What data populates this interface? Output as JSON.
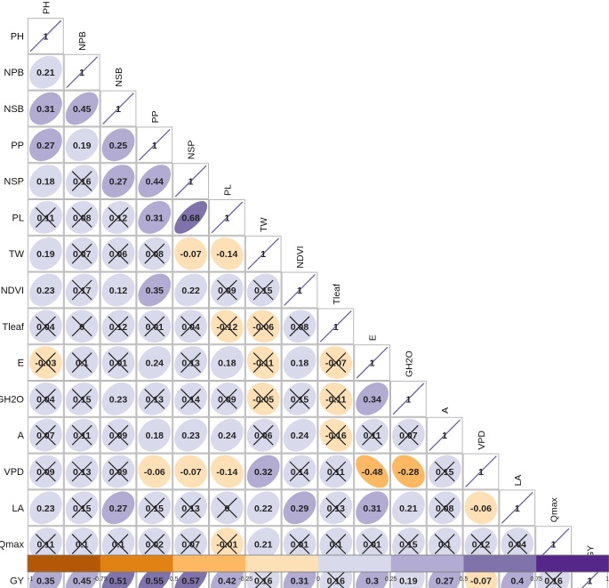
{
  "chart_data": {
    "type": "heatmap",
    "subtype": "correlation-matrix-lower-triangle",
    "variables": [
      "PH",
      "NPB",
      "NSB",
      "PP",
      "NSP",
      "PL",
      "TW",
      "NDVI",
      "Tleaf",
      "E",
      "GH2O",
      "A",
      "VPD",
      "LA",
      "Qmax",
      "GY"
    ],
    "matrix": [
      [
        1
      ],
      [
        0.21,
        1
      ],
      [
        0.31,
        0.45,
        1
      ],
      [
        0.27,
        0.19,
        0.25,
        1
      ],
      [
        0.18,
        0.16,
        0.27,
        0.44,
        1
      ],
      [
        0.11,
        0.08,
        0.12,
        0.31,
        0.68,
        1
      ],
      [
        0.19,
        0.07,
        0.06,
        0.08,
        -0.07,
        -0.14,
        1
      ],
      [
        0.23,
        0.17,
        0.12,
        0.35,
        0.22,
        0.09,
        0.15,
        1
      ],
      [
        0.04,
        0,
        0.12,
        0.01,
        0.04,
        -0.12,
        -0.06,
        0.08,
        1
      ],
      [
        -0.03,
        0.1,
        0.01,
        0.24,
        0.13,
        0.18,
        -0.11,
        0.18,
        -0.07,
        1
      ],
      [
        0.04,
        0.15,
        0.23,
        0.13,
        0.14,
        0.09,
        -0.05,
        0.15,
        -0.11,
        0.34,
        1
      ],
      [
        0.07,
        0.11,
        0.09,
        0.18,
        0.23,
        0.24,
        0.06,
        0.24,
        -0.16,
        0.11,
        0.07,
        1
      ],
      [
        0.09,
        0.13,
        0.09,
        -0.06,
        -0.07,
        -0.14,
        0.32,
        0.14,
        0.11,
        -0.48,
        -0.28,
        0.15,
        1
      ],
      [
        0.23,
        0.15,
        0.27,
        0.15,
        0.13,
        0,
        0.22,
        0.29,
        0.13,
        0.31,
        0.21,
        0.08,
        -0.06,
        1
      ],
      [
        0.11,
        0.1,
        0.1,
        0.02,
        0.07,
        -0.01,
        0.21,
        0.01,
        0.1,
        0.01,
        0.15,
        0.1,
        0.12,
        0.04,
        1
      ],
      [
        0.35,
        0.45,
        0.51,
        0.55,
        0.57,
        0.42,
        0.16,
        0.31,
        0.16,
        0.3,
        0.19,
        0.27,
        -0.07,
        0.4,
        0.16,
        1
      ]
    ],
    "labels": [
      [
        "1"
      ],
      [
        "0.21",
        "1"
      ],
      [
        "0.31",
        "0.45",
        "1"
      ],
      [
        "0.27",
        "0.19",
        "0.25",
        "1"
      ],
      [
        "0.18",
        "0.16",
        "0.27",
        "0.44",
        "1"
      ],
      [
        "0.11",
        "0.08",
        "0.12",
        "0.31",
        "0.68",
        "1"
      ],
      [
        "0.19",
        "0.07",
        "0.06",
        "0.08",
        "-0.07",
        "-0.14",
        "1"
      ],
      [
        "0.23",
        "0.17",
        "0.12",
        "0.35",
        "0.22",
        "0.09",
        "0.15",
        "1"
      ],
      [
        "0.04",
        "0",
        "0.12",
        "0.01",
        "0.04",
        "-0.12",
        "-0.06",
        "0.08",
        "1"
      ],
      [
        "-0.03",
        "0.1",
        "0.01",
        "0.24",
        "0.13",
        "0.18",
        "-0.11",
        "0.18",
        "-0.07",
        "1"
      ],
      [
        "0.04",
        "0.15",
        "0.23",
        "0.13",
        "0.14",
        "0.09",
        "-0.05",
        "0.15",
        "-0.11",
        "0.34",
        "1"
      ],
      [
        "0.07",
        "0.11",
        "0.09",
        "0.18",
        "0.23",
        "0.24",
        "0.06",
        "0.24",
        "-0.16",
        "0.11",
        "0.07",
        "1"
      ],
      [
        "0.09",
        "0.13",
        "0.09",
        "-0.06",
        "-0.07",
        "-0.14",
        "0.32",
        "0.14",
        "0.11",
        "-0.48",
        "-0.28",
        "0.15",
        "1"
      ],
      [
        "0.23",
        "0.15",
        "0.27",
        "0.15",
        "0.13",
        "0",
        "0.22",
        "0.29",
        "0.13",
        "0.31",
        "0.21",
        "0.08",
        "-0.06",
        "1"
      ],
      [
        "0.11",
        "0.1",
        "0.1",
        "0.02",
        "0.07",
        "-0.01",
        "0.21",
        "0.01",
        "0.1",
        "0.01",
        "0.15",
        "0.1",
        "0.12",
        "0.04",
        "1"
      ],
      [
        "0.35",
        "0.45",
        "0.51",
        "0.55",
        "0.57",
        "0.42",
        "0.16",
        "0.31",
        "0.16",
        "0.3",
        "0.19",
        "0.27",
        "-0.07",
        "0.4",
        "0.16",
        "1"
      ]
    ],
    "crossed_out": [
      [],
      [],
      [],
      [],
      [
        1
      ],
      [
        0,
        1,
        2
      ],
      [
        1,
        2,
        3
      ],
      [
        1,
        5,
        6
      ],
      [
        0,
        1,
        2,
        3,
        4,
        5,
        6,
        7
      ],
      [
        0,
        1,
        2,
        4,
        6,
        8
      ],
      [
        0,
        1,
        3,
        4,
        5,
        6,
        7,
        8
      ],
      [
        0,
        1,
        2,
        6,
        8,
        9,
        10
      ],
      [
        0,
        1,
        2,
        7,
        8,
        11
      ],
      [
        1,
        3,
        4,
        5,
        8,
        11
      ],
      [
        0,
        1,
        2,
        3,
        4,
        5,
        7,
        8,
        9,
        10,
        11,
        12,
        13
      ],
      [
        6,
        8,
        14
      ]
    ],
    "glyph": "ellipse",
    "triangle": "lower",
    "colorbar": {
      "range": [
        -1,
        1
      ],
      "ticks": [
        "-1",
        "-0.75",
        "-0.5",
        "-0.25",
        "0",
        "0.25",
        "0.5",
        "0.75",
        "1"
      ],
      "colors": [
        "#b35806",
        "#e08214",
        "#fdb863",
        "#fee0b6",
        "#d8daeb",
        "#b2abd2",
        "#8073ac",
        "#542788"
      ]
    }
  }
}
